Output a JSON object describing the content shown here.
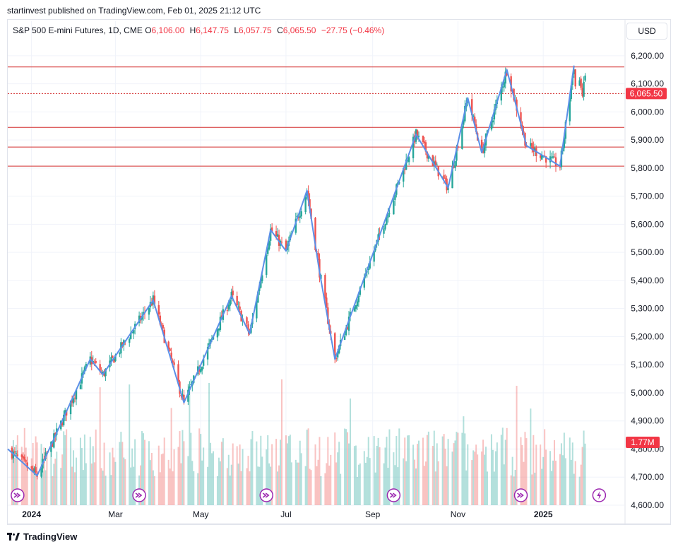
{
  "header": {
    "publisher_line": "startinvest published on TradingView.com, Feb 01, 2025 21:12 UTC"
  },
  "legend": {
    "symbol": "S&P 500 E-mini Futures, 1D, CME",
    "open_label": "O",
    "open": "6,106.00",
    "high_label": "H",
    "high": "6,147.75",
    "low_label": "L",
    "low": "6,057.75",
    "close_label": "C",
    "close": "6,065.50",
    "change": "−27.75 (−0.46%)"
  },
  "currency": "USD",
  "footer": {
    "brand": "TradingView"
  },
  "colors": {
    "up": "#26a69a",
    "down": "#ef5350",
    "zigzag": "#5b8fe8",
    "level_line": "#d32f2f",
    "price_badge": "#f23645",
    "grid": "#f0f3fa",
    "event_icon": "#9c27b0"
  },
  "chart_data": {
    "type": "candlestick",
    "title": "S&P 500 E-mini Futures, 1D, CME",
    "x_axis": {
      "tick_labels": [
        "2024",
        "Mar",
        "May",
        "Jul",
        "Sep",
        "Nov",
        "2025"
      ],
      "tick_dates": [
        "2024-01-01",
        "2024-03-01",
        "2024-05-01",
        "2024-07-01",
        "2024-09-01",
        "2024-11-01",
        "2025-01-01"
      ],
      "range": [
        "2023-12-15",
        "2025-02-28"
      ]
    },
    "y_axis": {
      "range": [
        4600,
        6260
      ],
      "ticks": [
        4600,
        4700,
        4800,
        4900,
        5000,
        5100,
        5200,
        5300,
        5400,
        5500,
        5600,
        5700,
        5800,
        5900,
        6000,
        6100,
        6200
      ],
      "tick_labels": [
        "4,600.00",
        "4,700.00",
        "4,800.00",
        "4,900.00",
        "5,000.00",
        "5,100.00",
        "5,200.00",
        "5,300.00",
        "5,400.00",
        "5,500.00",
        "5,600.00",
        "5,700.00",
        "5,800.00",
        "5,900.00",
        "6,000.00",
        "6,100.00",
        "6,200.00"
      ]
    },
    "current_price": {
      "value": 6065.5,
      "label": "6,065.50"
    },
    "volume_badge": "1.77M",
    "horizontal_levels": [
      6160,
      6065.5,
      5945,
      5875,
      5807
    ],
    "zigzag": [
      {
        "date": "2023-12-15",
        "price": 4800
      },
      {
        "date": "2024-01-05",
        "price": 4705
      },
      {
        "date": "2024-02-12",
        "price": 5120
      },
      {
        "date": "2024-02-21",
        "price": 5065
      },
      {
        "date": "2024-03-28",
        "price": 5330
      },
      {
        "date": "2024-04-19",
        "price": 4965
      },
      {
        "date": "2024-05-23",
        "price": 5345
      },
      {
        "date": "2024-06-05",
        "price": 5210
      },
      {
        "date": "2024-06-20",
        "price": 5580
      },
      {
        "date": "2024-07-01",
        "price": 5505
      },
      {
        "date": "2024-07-16",
        "price": 5720
      },
      {
        "date": "2024-07-25",
        "price": 5430
      },
      {
        "date": "2024-08-05",
        "price": 5120
      },
      {
        "date": "2024-10-02",
        "price": 5920
      },
      {
        "date": "2024-10-25",
        "price": 5730
      },
      {
        "date": "2024-11-08",
        "price": 6050
      },
      {
        "date": "2024-11-18",
        "price": 5855
      },
      {
        "date": "2024-12-06",
        "price": 6150
      },
      {
        "date": "2024-12-20",
        "price": 5880
      },
      {
        "date": "2025-01-13",
        "price": 5807
      },
      {
        "date": "2025-01-23",
        "price": 6165
      }
    ],
    "event_markers": [
      {
        "date": "2023-12-22",
        "type": "dividend"
      },
      {
        "date": "2024-03-18",
        "type": "dividend"
      },
      {
        "date": "2024-06-17",
        "type": "dividend"
      },
      {
        "date": "2024-09-16",
        "type": "dividend"
      },
      {
        "date": "2024-12-16",
        "type": "dividend"
      },
      {
        "date": "2025-02-10",
        "type": "flash"
      }
    ]
  }
}
